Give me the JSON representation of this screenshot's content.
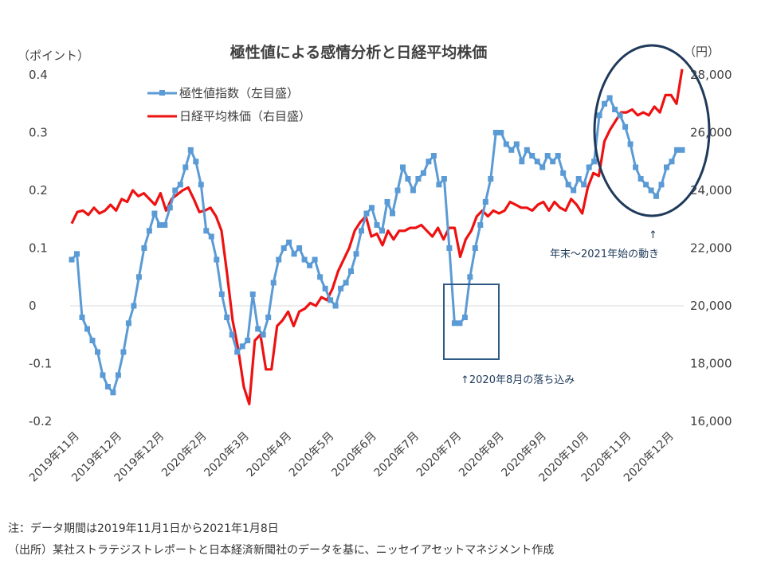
{
  "chart_data": {
    "type": "line",
    "title": "極性値による感情分析と日経平均株価",
    "left_axis": {
      "unit": "（ポイント）",
      "ylim": [
        -0.2,
        0.4
      ],
      "ticks": [
        "0.4",
        "0.3",
        "0.2",
        "0.1",
        "0",
        "-0.1",
        "-0.2"
      ],
      "tick_values": [
        0.4,
        0.3,
        0.2,
        0.1,
        0,
        -0.1,
        -0.2
      ]
    },
    "right_axis": {
      "unit": "（円）",
      "ylim": [
        16000,
        28000
      ],
      "ticks": [
        "28,000",
        "26,000",
        "24,000",
        "22,000",
        "20,000",
        "18,000",
        "16,000"
      ],
      "tick_values": [
        28000,
        26000,
        24000,
        22000,
        20000,
        18000,
        16000
      ]
    },
    "x_tick_labels": [
      "2019年11月",
      "2019年12月",
      "2019年12月",
      "2020年2月",
      "2020年3月",
      "2020年4月",
      "2020年5月",
      "2020年6月",
      "2020年7月",
      "2020年7月",
      "2020年8月",
      "2020年9月",
      "2020年10月",
      "2020年11月",
      "2020年12月"
    ],
    "series": [
      {
        "name": "極性値指数（左目盛）",
        "axis": "left",
        "color": "#5b9bd5",
        "marker": "square",
        "values": [
          0.08,
          0.09,
          -0.02,
          -0.04,
          -0.06,
          -0.08,
          -0.12,
          -0.14,
          -0.15,
          -0.12,
          -0.08,
          -0.03,
          0.0,
          0.05,
          0.1,
          0.13,
          0.16,
          0.14,
          0.14,
          0.17,
          0.2,
          0.21,
          0.24,
          0.27,
          0.25,
          0.21,
          0.13,
          0.12,
          0.08,
          0.02,
          -0.02,
          -0.05,
          -0.08,
          -0.07,
          -0.06,
          0.02,
          -0.04,
          -0.05,
          -0.02,
          0.04,
          0.08,
          0.1,
          0.11,
          0.09,
          0.1,
          0.08,
          0.07,
          0.08,
          0.05,
          0.03,
          0.01,
          0.0,
          0.03,
          0.04,
          0.06,
          0.09,
          0.13,
          0.16,
          0.17,
          0.14,
          0.13,
          0.18,
          0.16,
          0.2,
          0.24,
          0.22,
          0.2,
          0.22,
          0.23,
          0.25,
          0.26,
          0.21,
          0.22,
          0.1,
          -0.03,
          -0.03,
          -0.02,
          0.05,
          0.1,
          0.14,
          0.18,
          0.22,
          0.3,
          0.3,
          0.28,
          0.27,
          0.28,
          0.25,
          0.27,
          0.26,
          0.25,
          0.24,
          0.26,
          0.25,
          0.26,
          0.23,
          0.21,
          0.2,
          0.22,
          0.21,
          0.24,
          0.25,
          0.33,
          0.35,
          0.36,
          0.34,
          0.33,
          0.31,
          0.28,
          0.24,
          0.22,
          0.21,
          0.2,
          0.19,
          0.21,
          0.24,
          0.25,
          0.27,
          0.27
        ]
      },
      {
        "name": "日経平均株価（右目盛）",
        "axis": "right",
        "color": "#ee1111",
        "values": [
          22850,
          23250,
          23300,
          23150,
          23400,
          23200,
          23300,
          23500,
          23300,
          23700,
          23600,
          24000,
          23800,
          23900,
          23700,
          23500,
          23900,
          23300,
          23700,
          23850,
          24000,
          24100,
          23700,
          23250,
          23300,
          23400,
          23100,
          22600,
          21100,
          19500,
          18500,
          17200,
          16600,
          18800,
          19000,
          17800,
          17800,
          19300,
          19500,
          19800,
          19300,
          19800,
          19900,
          20100,
          20000,
          20300,
          20200,
          20600,
          21200,
          21600,
          22000,
          22600,
          22900,
          23100,
          22400,
          22500,
          22100,
          22600,
          22300,
          22600,
          22600,
          22700,
          22700,
          22800,
          22600,
          22400,
          22700,
          22300,
          22700,
          22700,
          21700,
          22300,
          22600,
          23100,
          23300,
          23100,
          23300,
          23200,
          23300,
          23600,
          23500,
          23400,
          23400,
          23300,
          23500,
          23600,
          23300,
          23600,
          23400,
          23300,
          23700,
          23500,
          23200,
          24100,
          24600,
          24500,
          25700,
          26100,
          26400,
          26700,
          26700,
          26800,
          26600,
          26700,
          26600,
          26900,
          26700,
          27300,
          27300,
          27000,
          28200
        ]
      }
    ],
    "legend": {
      "placement": "top-left"
    },
    "annotations": [
      {
        "text": "↑2020年8月の落ち込み",
        "shape": "rectangle"
      },
      {
        "text": "↑",
        "shape": "ellipse"
      },
      {
        "text": "年末～2021年始の動き",
        "shape": "none"
      }
    ]
  },
  "notes": {
    "note1": "注：データ期間は2019年11月1日から2021年1月8日",
    "note2": "（出所）某社ストラテジストレポートと日本経済新聞社のデータを基に、ニッセイアセットマネジメント作成"
  }
}
